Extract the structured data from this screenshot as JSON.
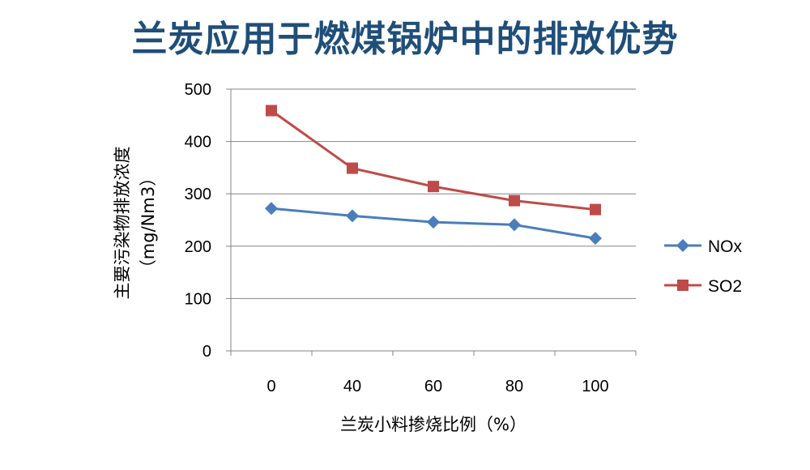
{
  "title": "兰炭应用于燃煤锅炉中的排放优势",
  "chart_data": {
    "type": "line",
    "categories": [
      "0",
      "40",
      "60",
      "80",
      "100"
    ],
    "series": [
      {
        "name": "NOx",
        "values": [
          272,
          258,
          246,
          241,
          215
        ],
        "color": "#4a7ebb",
        "marker": "diamond"
      },
      {
        "name": "SO2",
        "values": [
          459,
          349,
          314,
          287,
          270
        ],
        "color": "#be4b48",
        "marker": "square"
      }
    ],
    "xlabel": "兰炭小料掺烧比例（%）",
    "ylabel": "主要污染物排放浓度",
    "ylabel_unit": "（mg/Nm3）",
    "ylim": [
      0,
      500
    ],
    "yticks": [
      0,
      100,
      200,
      300,
      400,
      500
    ],
    "grid": "horizontal",
    "legend_position": "right"
  }
}
